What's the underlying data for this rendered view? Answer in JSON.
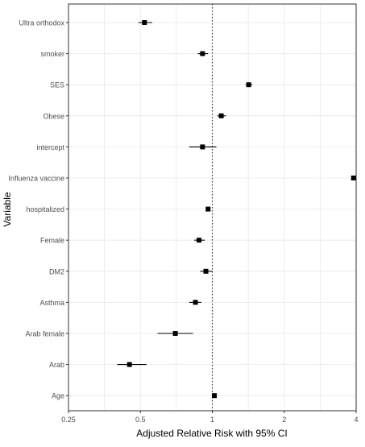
{
  "chart_data": {
    "type": "forest",
    "title": "",
    "xlabel": "Adjusted Relative Risk with 95% CI",
    "ylabel": "Variable",
    "x_scale": "log2",
    "xlim": [
      0.25,
      4
    ],
    "x_ticks": [
      0.25,
      0.5,
      1,
      2,
      4
    ],
    "x_tick_labels": [
      "0.25",
      "0.5",
      "1",
      "2",
      "4"
    ],
    "reference_line": 1,
    "grid": true,
    "categories": [
      "Ultra orthodox",
      "smoker",
      "SES",
      "Obese",
      "intercept",
      "Influenza vaccine",
      "hospitalized",
      "Female",
      "DM2",
      "Asthma",
      "Arab female",
      "Arab",
      "Age"
    ],
    "estimates": [
      0.52,
      0.91,
      1.42,
      1.09,
      0.91,
      3.9,
      0.96,
      0.88,
      0.94,
      0.85,
      0.7,
      0.45,
      1.02
    ],
    "ci_low": [
      0.49,
      0.87,
      1.38,
      1.05,
      0.8,
      3.88,
      0.95,
      0.84,
      0.89,
      0.8,
      0.59,
      0.4,
      1.01
    ],
    "ci_high": [
      0.56,
      0.96,
      1.47,
      1.14,
      1.04,
      3.92,
      0.97,
      0.93,
      1.0,
      0.9,
      0.83,
      0.53,
      1.03
    ],
    "colors": {
      "point": "#000000",
      "ci_line": "#000000",
      "grid": "#e8e8e8",
      "panel_border": "#333333",
      "reference_line": "#333333",
      "axis_text": "#4d4d4d"
    }
  }
}
